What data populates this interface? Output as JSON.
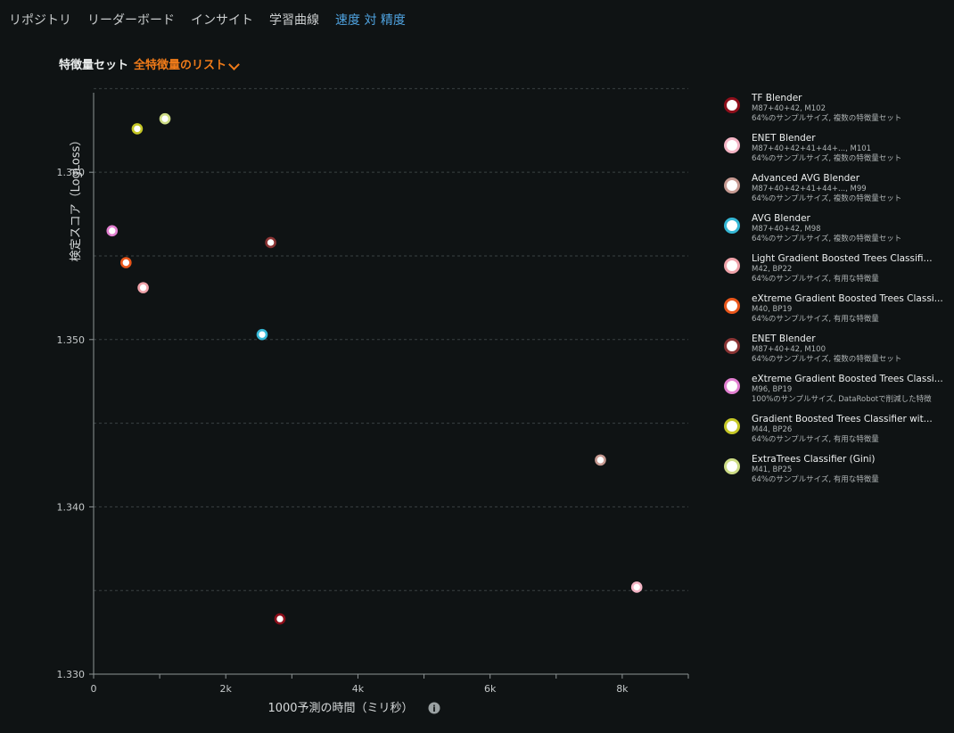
{
  "tabs": [
    {
      "label": "リポジトリ",
      "active": false
    },
    {
      "label": "リーダーボード",
      "active": false
    },
    {
      "label": "インサイト",
      "active": false
    },
    {
      "label": "学習曲線",
      "active": false
    },
    {
      "label": "速度 対 精度",
      "active": true
    }
  ],
  "feature_set": {
    "label": "特徴量セット",
    "value": "全特徴量のリスト"
  },
  "chart_data": {
    "type": "scatter",
    "xlabel": "1000予測の時間（ミリ秒）",
    "ylabel": "検定スコア（LogLoss）",
    "xlim": [
      0,
      9000
    ],
    "ylim": [
      1.33,
      1.3655
    ],
    "xticks": [
      0,
      2000,
      4000,
      6000,
      8000
    ],
    "xtick_labels": [
      "0",
      "2k",
      "4k",
      "6k",
      "8k"
    ],
    "xminor": [
      1000,
      3000,
      5000,
      7000,
      9000
    ],
    "yticks": [
      1.33,
      1.34,
      1.35,
      1.36
    ],
    "ytick_labels": [
      "1.330",
      "1.340",
      "1.350",
      "1.360"
    ],
    "grid_y": [
      1.335,
      1.34,
      1.345,
      1.35,
      1.355,
      1.36,
      1.365
    ],
    "legend": "right",
    "series": [
      {
        "name": "TF Blender",
        "id": "M87+40+42, M102",
        "detail": "64%のサンプルサイズ, 複数の特徴量セット",
        "color": "#8e0f1b",
        "x": 2820,
        "y": 1.3333
      },
      {
        "name": "ENET Blender",
        "id": "M87+40+42+41+44+..., M101",
        "detail": "64%のサンプルサイズ, 複数の特徴量セット",
        "color": "#f4b5c5",
        "x": 8220,
        "y": 1.3352
      },
      {
        "name": "Advanced AVG Blender",
        "id": "M87+40+42+41+44+..., M99",
        "detail": "64%のサンプルサイズ, 複数の特徴量セット",
        "color": "#c79a92",
        "x": 7670,
        "y": 1.3428
      },
      {
        "name": "AVG Blender",
        "id": "M87+40+42, M98",
        "detail": "64%のサンプルサイズ, 複数の特徴量セット",
        "color": "#35b7d5",
        "x": 2550,
        "y": 1.3503
      },
      {
        "name": "Light Gradient Boosted Trees Classifi...",
        "id": "M42, BP22",
        "detail": "64%のサンプルサイズ, 有用な特徴量",
        "color": "#efa2a9",
        "x": 750,
        "y": 1.3531
      },
      {
        "name": "eXtreme Gradient Boosted Trees Classi...",
        "id": "M40, BP19",
        "detail": "64%のサンプルサイズ, 有用な特徴量",
        "color": "#e9561b",
        "x": 490,
        "y": 1.3546
      },
      {
        "name": "ENET Blender",
        "id": "M87+40+42, M100",
        "detail": "64%のサンプルサイズ, 複数の特徴量セット",
        "color": "#8a3434",
        "x": 2680,
        "y": 1.3558
      },
      {
        "name": "eXtreme Gradient Boosted Trees Classi...",
        "id": "M96, BP19",
        "detail": "100%のサンプルサイズ, DataRobotで削減した特徴",
        "color": "#e27fd0",
        "x": 280,
        "y": 1.3565
      },
      {
        "name": "Gradient Boosted Trees Classifier wit...",
        "id": "M44, BP26",
        "detail": "64%のサンプルサイズ, 有用な特徴量",
        "color": "#c5c726",
        "x": 660,
        "y": 1.3626
      },
      {
        "name": "ExtraTrees Classifier (Gini)",
        "id": "M41, BP25",
        "detail": "64%のサンプルサイズ, 有用な特徴量",
        "color": "#cddc85",
        "x": 1080,
        "y": 1.3632
      }
    ]
  }
}
